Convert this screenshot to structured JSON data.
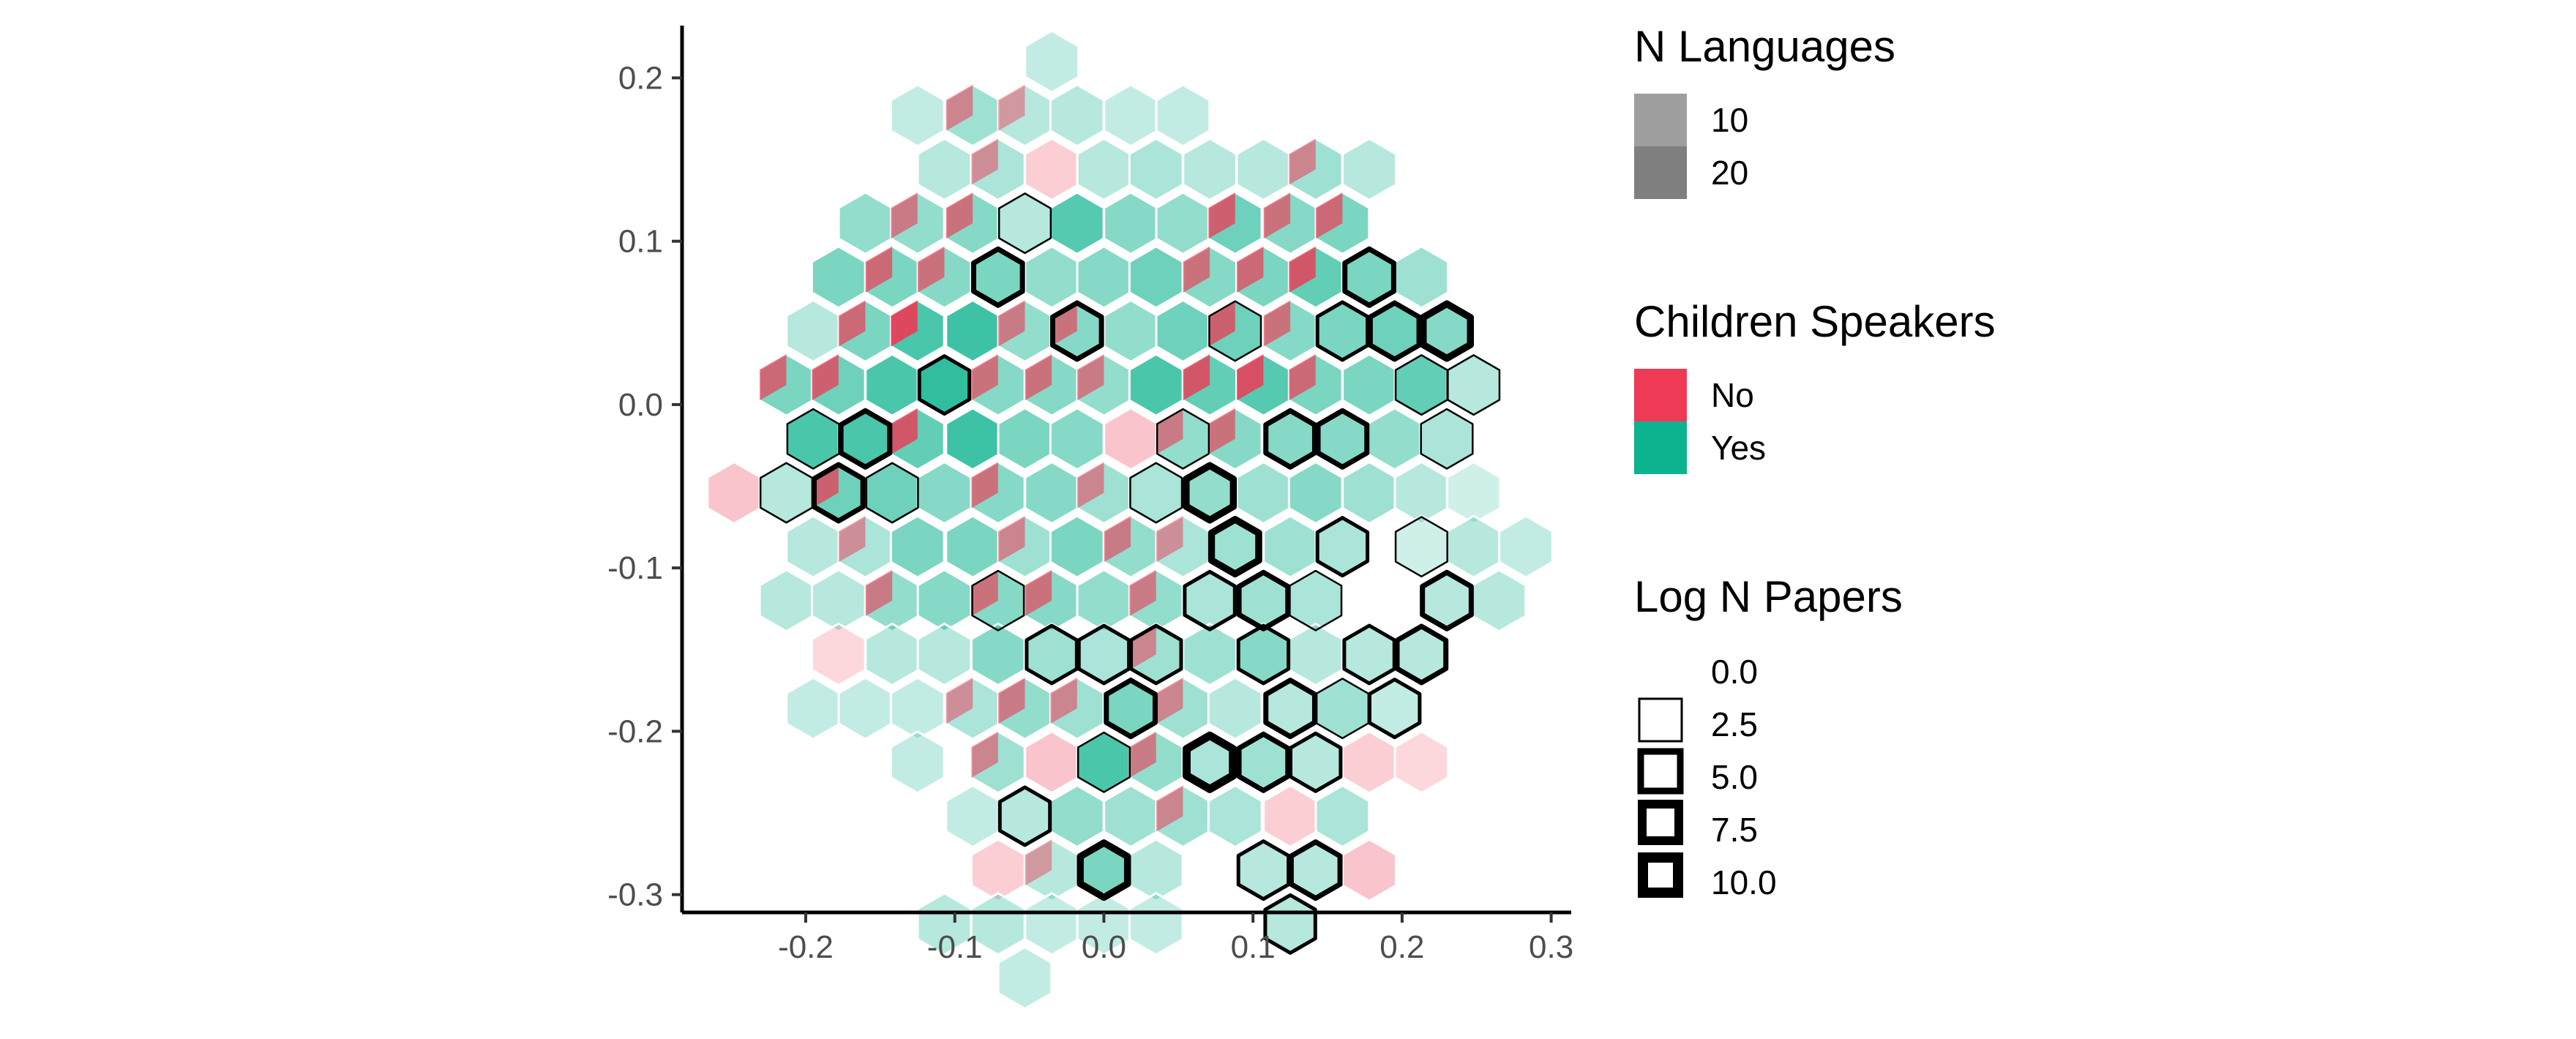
{
  "chart_data": {
    "type": "heatmap",
    "subtype": "hexbin",
    "title": "",
    "xlabel": "",
    "ylabel": "",
    "xlim": [
      -0.28,
      0.31
    ],
    "ylim": [
      -0.31,
      0.232
    ],
    "x_ticks": [
      "-0.2",
      "-0.1",
      "0.0",
      "0.1",
      "0.2",
      "0.3"
    ],
    "x_tick_values": [
      -0.2,
      -0.1,
      0.0,
      0.1,
      0.2,
      0.3
    ],
    "y_ticks": [
      "0.2",
      "0.1",
      "0.0",
      "-0.1",
      "-0.2",
      "-0.3"
    ],
    "y_tick_values": [
      0.2,
      0.1,
      0.0,
      -0.1,
      -0.2,
      -0.3
    ],
    "grid": false,
    "legend_position": "right",
    "colors": {
      "No": "#ee3a55",
      "Yes": "#0db38e"
    },
    "legends": {
      "n_languages": {
        "title": "N Languages",
        "entries": [
          "10",
          "20"
        ]
      },
      "children_speakers": {
        "title": "Children Speakers",
        "entries": [
          "No",
          "Yes"
        ]
      },
      "log_n_papers": {
        "title": "Log N Papers",
        "entries": [
          "0.0",
          "2.5",
          "5.0",
          "7.5",
          "10.0"
        ]
      }
    },
    "hex_rows": [
      {
        "y": 0.21,
        "cells": [
          [
            -0.035,
            "Y",
            0.25,
            0
          ]
        ]
      },
      {
        "y": 0.177,
        "cells": [
          [
            -0.125,
            "Y",
            0.25,
            0
          ],
          [
            -0.088,
            "M",
            0.4,
            0
          ],
          [
            -0.053,
            "M",
            0.3,
            0
          ],
          [
            -0.018,
            "Y",
            0.3,
            0
          ],
          [
            0.018,
            "Y",
            0.25,
            0
          ],
          [
            0.053,
            "Y",
            0.25,
            0
          ]
        ]
      },
      {
        "y": 0.144,
        "cells": [
          [
            -0.107,
            "Y",
            0.3,
            0
          ],
          [
            -0.071,
            "M",
            0.35,
            0
          ],
          [
            -0.035,
            "N",
            0.25,
            0
          ],
          [
            0.0,
            "Y",
            0.3,
            0
          ],
          [
            0.035,
            "Y",
            0.35,
            0
          ],
          [
            0.071,
            "Y",
            0.3,
            0
          ],
          [
            0.107,
            "Y",
            0.3,
            0
          ],
          [
            0.142,
            "M",
            0.4,
            0
          ],
          [
            0.178,
            "Y",
            0.3,
            0
          ]
        ]
      },
      {
        "y": 0.111,
        "cells": [
          [
            -0.16,
            "Y",
            0.45,
            0
          ],
          [
            -0.125,
            "M",
            0.45,
            0
          ],
          [
            -0.088,
            "M",
            0.5,
            0
          ],
          [
            -0.053,
            "Y",
            0.3,
            1
          ],
          [
            -0.018,
            "Y",
            0.7,
            0
          ],
          [
            0.018,
            "Y",
            0.5,
            0
          ],
          [
            0.053,
            "Y",
            0.45,
            0
          ],
          [
            0.088,
            "M",
            0.6,
            0
          ],
          [
            0.125,
            "M",
            0.5,
            0
          ],
          [
            0.16,
            "M",
            0.55,
            0
          ]
        ]
      },
      {
        "y": 0.078,
        "cells": [
          [
            -0.178,
            "Y",
            0.55,
            0
          ],
          [
            -0.142,
            "M",
            0.55,
            0
          ],
          [
            -0.107,
            "M",
            0.5,
            0
          ],
          [
            -0.071,
            "Y",
            0.55,
            3
          ],
          [
            -0.035,
            "Y",
            0.45,
            0
          ],
          [
            0.0,
            "Y",
            0.5,
            0
          ],
          [
            0.035,
            "Y",
            0.6,
            0
          ],
          [
            0.071,
            "M",
            0.5,
            0
          ],
          [
            0.107,
            "M",
            0.55,
            0
          ],
          [
            0.142,
            "M",
            0.65,
            0
          ],
          [
            0.178,
            "Y",
            0.55,
            3
          ],
          [
            0.213,
            "Y",
            0.4,
            0
          ]
        ]
      },
      {
        "y": 0.045,
        "cells": [
          [
            -0.195,
            "Y",
            0.3,
            0
          ],
          [
            -0.16,
            "M",
            0.55,
            0
          ],
          [
            -0.125,
            "M",
            0.75,
            0
          ],
          [
            -0.088,
            "Y",
            0.8,
            0
          ],
          [
            -0.053,
            "M",
            0.45,
            0
          ],
          [
            -0.018,
            "M",
            0.5,
            3
          ],
          [
            0.018,
            "Y",
            0.45,
            0
          ],
          [
            0.053,
            "Y",
            0.6,
            0
          ],
          [
            0.088,
            "M",
            0.6,
            1
          ],
          [
            0.125,
            "M",
            0.5,
            0
          ],
          [
            0.16,
            "Y",
            0.55,
            2
          ],
          [
            0.195,
            "Y",
            0.6,
            3
          ],
          [
            0.23,
            "Y",
            0.5,
            4
          ]
        ]
      },
      {
        "y": 0.012,
        "cells": [
          [
            -0.213,
            "M",
            0.55,
            0
          ],
          [
            -0.178,
            "M",
            0.6,
            0
          ],
          [
            -0.142,
            "Y",
            0.75,
            0
          ],
          [
            -0.107,
            "Y",
            0.85,
            2
          ],
          [
            -0.071,
            "M",
            0.5,
            0
          ],
          [
            -0.035,
            "M",
            0.5,
            0
          ],
          [
            0.0,
            "M",
            0.45,
            0
          ],
          [
            0.035,
            "Y",
            0.75,
            0
          ],
          [
            0.071,
            "M",
            0.65,
            0
          ],
          [
            0.107,
            "M",
            0.7,
            0
          ],
          [
            0.142,
            "M",
            0.55,
            0
          ],
          [
            0.178,
            "Y",
            0.55,
            0
          ],
          [
            0.213,
            "Y",
            0.65,
            1
          ],
          [
            0.248,
            "Y",
            0.3,
            1
          ]
        ]
      },
      {
        "y": -0.021,
        "cells": [
          [
            -0.195,
            "Y",
            0.75,
            1
          ],
          [
            -0.16,
            "Y",
            0.75,
            3
          ],
          [
            -0.125,
            "M",
            0.65,
            0
          ],
          [
            -0.088,
            "Y",
            0.8,
            0
          ],
          [
            -0.053,
            "Y",
            0.55,
            0
          ],
          [
            -0.018,
            "Y",
            0.5,
            0
          ],
          [
            0.018,
            "N",
            0.3,
            0
          ],
          [
            0.053,
            "M",
            0.45,
            1
          ],
          [
            0.088,
            "M",
            0.5,
            0
          ],
          [
            0.125,
            "Y",
            0.5,
            3
          ],
          [
            0.16,
            "Y",
            0.5,
            3
          ],
          [
            0.195,
            "Y",
            0.45,
            0
          ],
          [
            0.23,
            "Y",
            0.35,
            1
          ]
        ]
      },
      {
        "y": -0.054,
        "cells": [
          [
            -0.248,
            "N",
            0.3,
            0
          ],
          [
            -0.213,
            "Y",
            0.3,
            1
          ],
          [
            -0.178,
            "M",
            0.6,
            3
          ],
          [
            -0.142,
            "Y",
            0.6,
            1
          ],
          [
            -0.107,
            "Y",
            0.5,
            0
          ],
          [
            -0.071,
            "M",
            0.5,
            0
          ],
          [
            -0.035,
            "Y",
            0.5,
            0
          ],
          [
            0.0,
            "M",
            0.4,
            0
          ],
          [
            0.035,
            "Y",
            0.35,
            1
          ],
          [
            0.071,
            "Y",
            0.45,
            4
          ],
          [
            0.107,
            "Y",
            0.4,
            0
          ],
          [
            0.142,
            "Y",
            0.5,
            0
          ],
          [
            0.178,
            "Y",
            0.4,
            0
          ],
          [
            0.213,
            "Y",
            0.3,
            0
          ],
          [
            0.248,
            "Y",
            0.2,
            0
          ]
        ]
      },
      {
        "y": -0.087,
        "cells": [
          [
            -0.195,
            "Y",
            0.3,
            0
          ],
          [
            -0.16,
            "M",
            0.35,
            0
          ],
          [
            -0.125,
            "Y",
            0.55,
            0
          ],
          [
            -0.088,
            "Y",
            0.55,
            0
          ],
          [
            -0.053,
            "M",
            0.4,
            0
          ],
          [
            -0.018,
            "Y",
            0.55,
            0
          ],
          [
            0.018,
            "M",
            0.45,
            0
          ],
          [
            0.053,
            "M",
            0.35,
            0
          ],
          [
            0.088,
            "Y",
            0.4,
            4
          ],
          [
            0.125,
            "Y",
            0.4,
            0
          ],
          [
            0.16,
            "Y",
            0.35,
            2
          ],
          [
            0.213,
            "Y",
            0.2,
            1
          ],
          [
            0.248,
            "Y",
            0.3,
            0
          ],
          [
            0.283,
            "Y",
            0.25,
            0
          ]
        ]
      },
      {
        "y": -0.12,
        "cells": [
          [
            -0.213,
            "Y",
            0.3,
            0
          ],
          [
            -0.178,
            "Y",
            0.3,
            0
          ],
          [
            -0.142,
            "M",
            0.45,
            0
          ],
          [
            -0.107,
            "Y",
            0.5,
            0
          ],
          [
            -0.071,
            "M",
            0.5,
            1
          ],
          [
            -0.035,
            "M",
            0.5,
            0
          ],
          [
            0.0,
            "Y",
            0.45,
            0
          ],
          [
            0.035,
            "M",
            0.45,
            0
          ],
          [
            0.071,
            "Y",
            0.35,
            2
          ],
          [
            0.107,
            "Y",
            0.4,
            3
          ],
          [
            0.142,
            "Y",
            0.35,
            1
          ],
          [
            0.23,
            "Y",
            0.3,
            3
          ],
          [
            0.265,
            "Y",
            0.3,
            0
          ]
        ]
      },
      {
        "y": -0.153,
        "cells": [
          [
            -0.178,
            "N",
            0.2,
            0
          ],
          [
            -0.142,
            "Y",
            0.3,
            0
          ],
          [
            -0.107,
            "Y",
            0.3,
            0
          ],
          [
            -0.071,
            "Y",
            0.5,
            0
          ],
          [
            -0.035,
            "Y",
            0.4,
            2
          ],
          [
            0.0,
            "Y",
            0.35,
            2
          ],
          [
            0.035,
            "M",
            0.4,
            2
          ],
          [
            0.071,
            "Y",
            0.4,
            0
          ],
          [
            0.107,
            "Y",
            0.5,
            2
          ],
          [
            0.142,
            "Y",
            0.3,
            0
          ],
          [
            0.178,
            "Y",
            0.3,
            2
          ],
          [
            0.213,
            "Y",
            0.3,
            3
          ]
        ]
      },
      {
        "y": -0.186,
        "cells": [
          [
            -0.195,
            "Y",
            0.25,
            0
          ],
          [
            -0.16,
            "Y",
            0.25,
            0
          ],
          [
            -0.125,
            "Y",
            0.25,
            0
          ],
          [
            -0.088,
            "M",
            0.35,
            0
          ],
          [
            -0.053,
            "M",
            0.45,
            0
          ],
          [
            -0.018,
            "M",
            0.4,
            0
          ],
          [
            0.018,
            "Y",
            0.55,
            3
          ],
          [
            0.053,
            "M",
            0.4,
            0
          ],
          [
            0.088,
            "Y",
            0.3,
            0
          ],
          [
            0.125,
            "Y",
            0.3,
            3
          ],
          [
            0.16,
            "Y",
            0.4,
            1
          ],
          [
            0.195,
            "Y",
            0.25,
            2
          ]
        ]
      },
      {
        "y": -0.219,
        "cells": [
          [
            -0.125,
            "Y",
            0.25,
            0
          ],
          [
            -0.071,
            "M",
            0.4,
            0
          ],
          [
            -0.035,
            "N",
            0.3,
            0
          ],
          [
            0.0,
            "Y",
            0.75,
            1
          ],
          [
            0.035,
            "M",
            0.45,
            0
          ],
          [
            0.071,
            "Y",
            0.35,
            5
          ],
          [
            0.107,
            "Y",
            0.4,
            3
          ],
          [
            0.142,
            "Y",
            0.3,
            2
          ],
          [
            0.178,
            "N",
            0.25,
            0
          ],
          [
            0.213,
            "N",
            0.2,
            0
          ]
        ]
      },
      {
        "y": -0.252,
        "cells": [
          [
            -0.088,
            "Y",
            0.25,
            0
          ],
          [
            -0.053,
            "Y",
            0.3,
            2
          ],
          [
            -0.018,
            "Y",
            0.45,
            0
          ],
          [
            0.018,
            "Y",
            0.4,
            0
          ],
          [
            0.053,
            "M",
            0.4,
            0
          ],
          [
            0.088,
            "Y",
            0.35,
            0
          ],
          [
            0.125,
            "N",
            0.25,
            0
          ],
          [
            0.16,
            "Y",
            0.35,
            0
          ]
        ]
      },
      {
        "y": -0.285,
        "cells": [
          [
            -0.071,
            "N",
            0.25,
            0
          ],
          [
            -0.035,
            "M",
            0.3,
            0
          ],
          [
            0.0,
            "Y",
            0.55,
            4
          ],
          [
            0.035,
            "Y",
            0.3,
            0
          ],
          [
            0.107,
            "Y",
            0.3,
            2
          ],
          [
            0.142,
            "Y",
            0.3,
            3
          ],
          [
            0.178,
            "N",
            0.3,
            0
          ]
        ]
      },
      {
        "y": -0.318,
        "cells": [
          [
            -0.107,
            "Y",
            0.3,
            0
          ],
          [
            -0.071,
            "Y",
            0.3,
            0
          ],
          [
            -0.035,
            "Y",
            0.25,
            0
          ],
          [
            0.0,
            "Y",
            0.25,
            0
          ],
          [
            0.035,
            "Y",
            0.25,
            0
          ],
          [
            0.125,
            "Y",
            0.3,
            2
          ]
        ]
      },
      {
        "y": -0.351,
        "cells": [
          [
            -0.053,
            "Y",
            0.25,
            0
          ]
        ]
      }
    ]
  }
}
